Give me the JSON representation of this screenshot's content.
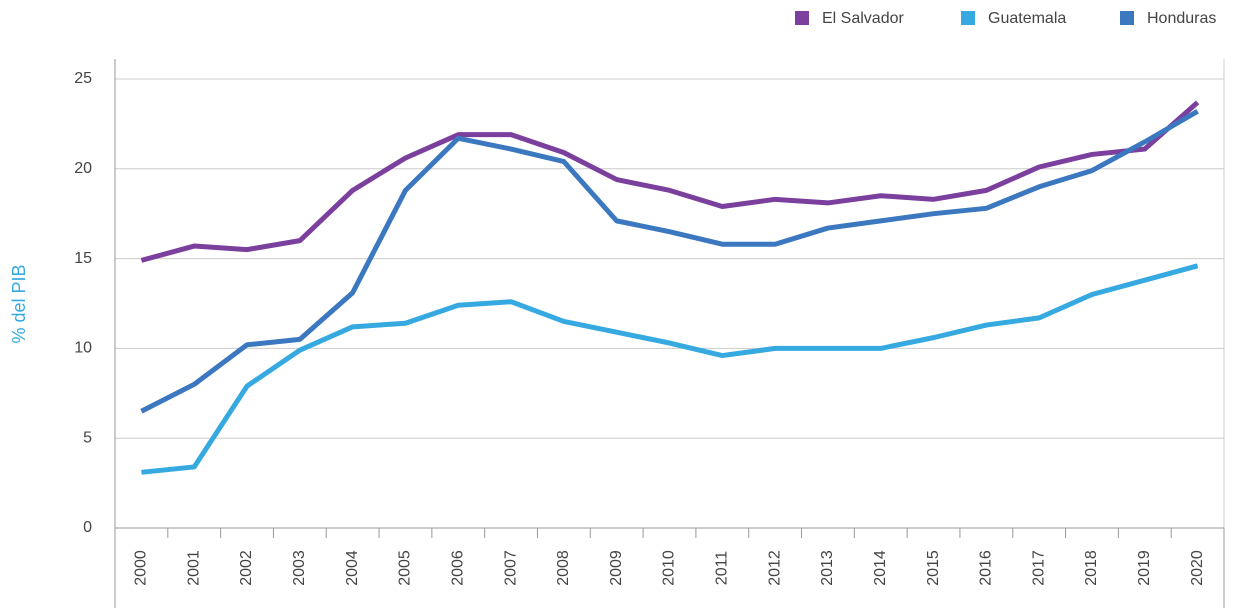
{
  "chart_data": {
    "type": "line",
    "y_label": "% del PIB",
    "categories": [
      "2000",
      "2001",
      "2002",
      "2003",
      "2004",
      "2005",
      "2006",
      "2007",
      "2008",
      "2009",
      "2010",
      "2011",
      "2012",
      "2013",
      "2014",
      "2015",
      "2016",
      "2017",
      "2018",
      "2019",
      "2020"
    ],
    "series": [
      {
        "name": "El Salvador",
        "color": "#7b3f9e",
        "values": [
          14.9,
          15.7,
          15.5,
          16.0,
          18.8,
          20.6,
          21.9,
          21.9,
          20.9,
          19.4,
          18.8,
          17.9,
          18.3,
          18.1,
          18.5,
          18.3,
          18.8,
          20.1,
          20.8,
          21.1,
          23.7
        ]
      },
      {
        "name": "Guatemala",
        "color": "#35a9e0",
        "values": [
          3.1,
          3.4,
          7.9,
          9.9,
          11.2,
          11.4,
          12.4,
          12.6,
          11.5,
          10.9,
          10.3,
          9.6,
          10.0,
          10.0,
          10.0,
          10.6,
          11.3,
          11.7,
          13.0,
          13.8,
          14.6
        ]
      },
      {
        "name": "Honduras",
        "color": "#3b78c0",
        "values": [
          6.5,
          8.0,
          10.2,
          10.5,
          13.1,
          18.8,
          21.7,
          21.1,
          20.4,
          17.1,
          16.5,
          15.8,
          15.8,
          16.7,
          17.1,
          17.5,
          17.8,
          19.0,
          19.9,
          21.5,
          23.2
        ]
      }
    ],
    "ylim": [
      0,
      25
    ],
    "yticks": [
      0,
      5,
      10,
      15,
      20,
      25
    ],
    "grid": true,
    "legend": "top-right"
  }
}
